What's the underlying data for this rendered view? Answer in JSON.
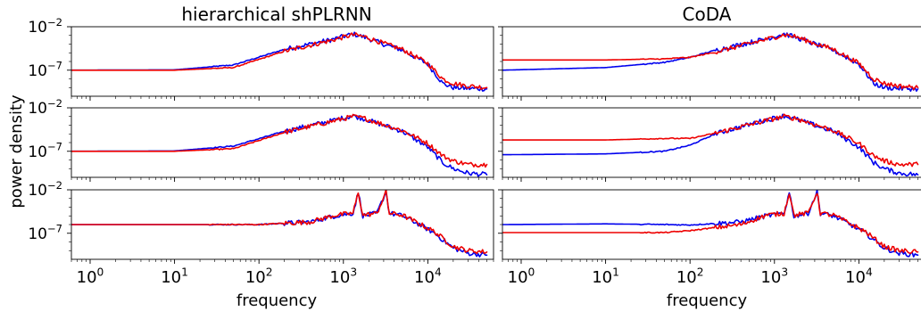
{
  "figure": {
    "ylabel": "power density",
    "columns": [
      {
        "title": "hierarchical shPLRNN"
      },
      {
        "title": "CoDA"
      }
    ],
    "xlabel": "frequency",
    "x_ticks": [
      {
        "base": "10",
        "exp": "0"
      },
      {
        "base": "10",
        "exp": "1"
      },
      {
        "base": "10",
        "exp": "2"
      },
      {
        "base": "10",
        "exp": "3"
      },
      {
        "base": "10",
        "exp": "4"
      }
    ],
    "y_ticks": [
      {
        "base": "10",
        "exp": "−2"
      },
      {
        "base": "10",
        "exp": "−7"
      }
    ]
  },
  "chart_data": {
    "type": "line",
    "layout": "3 rows x 2 columns of subplots, shared log x axis, log y axis",
    "x_scale": "log",
    "y_scale": "log",
    "xlim": [
      0.6,
      60000
    ],
    "ylim": [
      1e-10,
      0.01
    ],
    "grid": false,
    "series_colors": {
      "blue": "#0000ee",
      "red": "#ee0000"
    },
    "panels": [
      {
        "column": "hierarchical shPLRNN",
        "row": 1,
        "series": [
          {
            "color": "blue",
            "x": [
              0.6,
              10,
              50,
              200,
              700,
              1300,
              1800,
              3000,
              5000,
              10000,
              15000,
              20000,
              30000,
              50000
            ],
            "y": [
              1e-07,
              1.1e-07,
              4e-07,
              2.5e-05,
              0.0003,
              0.0015,
              0.0006,
              0.0001,
              2e-05,
              5e-07,
              3e-09,
              1e-09,
              8e-10,
              7e-10
            ]
          },
          {
            "color": "red",
            "x": [
              0.6,
              10,
              50,
              200,
              700,
              1300,
              1800,
              3000,
              5000,
              10000,
              15000,
              20000,
              30000,
              50000
            ],
            "y": [
              1e-07,
              1e-07,
              2e-07,
              1.5e-05,
              0.00025,
              0.0012,
              0.0007,
              0.00012,
              2.5e-05,
              6e-07,
              1e-08,
              3e-09,
              1.5e-09,
              1e-09
            ]
          }
        ]
      },
      {
        "column": "hierarchical shPLRNN",
        "row": 2,
        "series": [
          {
            "color": "blue",
            "x": [
              0.6,
              10,
              50,
              200,
              700,
              1300,
              1800,
              3000,
              5000,
              10000,
              15000,
              20000,
              30000,
              50000
            ],
            "y": [
              1e-07,
              1.1e-07,
              4e-07,
              2e-05,
              0.0003,
              0.0012,
              0.0005,
              0.0001,
              2e-05,
              3e-07,
              5e-09,
              1e-09,
              3e-10,
              2e-10
            ]
          },
          {
            "color": "red",
            "x": [
              0.6,
              10,
              50,
              200,
              700,
              1300,
              1800,
              3000,
              5000,
              10000,
              15000,
              20000,
              30000,
              50000
            ],
            "y": [
              1e-07,
              1e-07,
              2e-07,
              1.5e-05,
              0.00025,
              0.001,
              0.0006,
              0.00012,
              2.5e-05,
              8e-07,
              3e-08,
              8e-09,
              3e-09,
              3e-09
            ]
          }
        ]
      },
      {
        "column": "hierarchical shPLRNN",
        "row": 3,
        "series": [
          {
            "color": "blue",
            "x": [
              0.6,
              10,
              50,
              100,
              400,
              800,
              1300,
              1500,
              1700,
              2500,
              3200,
              3500,
              5000,
              8000,
              12000,
              20000,
              30000,
              50000
            ],
            "y": [
              1e-06,
              1e-06,
              1e-06,
              1e-06,
              2e-06,
              1e-05,
              2e-05,
              0.005,
              1e-05,
              2e-05,
              0.006,
              2e-05,
              1e-05,
              1e-06,
              1e-07,
              2e-09,
              5e-10,
              3e-10
            ]
          },
          {
            "color": "red",
            "x": [
              0.6,
              10,
              50,
              100,
              400,
              800,
              1300,
              1500,
              1700,
              2500,
              3200,
              3500,
              5000,
              8000,
              12000,
              20000,
              30000,
              50000
            ],
            "y": [
              1e-06,
              1e-06,
              1e-06,
              1e-06,
              2e-06,
              1.2e-05,
              2e-05,
              0.005,
              1.2e-05,
              2e-05,
              0.006,
              2e-05,
              1.2e-05,
              1.2e-06,
              1.5e-07,
              3e-09,
              1e-09,
              7e-10
            ]
          }
        ]
      },
      {
        "column": "CoDA",
        "row": 1,
        "series": [
          {
            "color": "blue",
            "x": [
              0.6,
              10,
              50,
              100,
              200,
              700,
              1300,
              1800,
              3000,
              5000,
              10000,
              15000,
              20000,
              30000,
              50000
            ],
            "y": [
              1e-07,
              2e-07,
              8e-07,
              3e-06,
              2e-05,
              0.0003,
              0.0015,
              0.0006,
              0.0001,
              2e-05,
              5e-07,
              3e-09,
              1e-09,
              8e-10,
              7e-10
            ]
          },
          {
            "color": "red",
            "x": [
              0.6,
              10,
              50,
              100,
              200,
              700,
              1300,
              1800,
              3000,
              5000,
              10000,
              15000,
              20000,
              30000,
              50000
            ],
            "y": [
              1.5e-06,
              1.5e-06,
              2e-06,
              3e-06,
              1.2e-05,
              0.00025,
              0.0012,
              0.0007,
              0.00012,
              2.5e-05,
              6e-07,
              1e-08,
              3e-09,
              1.5e-09,
              1e-09
            ]
          }
        ]
      },
      {
        "column": "CoDA",
        "row": 2,
        "series": [
          {
            "color": "blue",
            "x": [
              0.6,
              10,
              50,
              100,
              200,
              700,
              1300,
              1800,
              3000,
              5000,
              10000,
              15000,
              20000,
              30000,
              50000
            ],
            "y": [
              4e-08,
              5e-08,
              1e-07,
              5e-07,
              1e-05,
              0.0003,
              0.0012,
              0.0005,
              0.0001,
              2e-05,
              3e-07,
              5e-09,
              1e-09,
              3e-10,
              2e-10
            ]
          },
          {
            "color": "red",
            "x": [
              0.6,
              10,
              50,
              100,
              200,
              700,
              1300,
              1800,
              3000,
              5000,
              10000,
              15000,
              20000,
              30000,
              50000
            ],
            "y": [
              2e-06,
              2e-06,
              3e-06,
              3e-06,
              1.2e-05,
              0.00025,
              0.001,
              0.0006,
              0.00012,
              2.5e-05,
              8e-07,
              3e-08,
              8e-09,
              3e-09,
              3e-09
            ]
          }
        ]
      },
      {
        "column": "CoDA",
        "row": 3,
        "series": [
          {
            "color": "blue",
            "x": [
              0.6,
              10,
              50,
              100,
              400,
              800,
              1300,
              1500,
              1700,
              2500,
              3200,
              3500,
              5000,
              8000,
              12000,
              20000,
              30000,
              50000
            ],
            "y": [
              1e-06,
              1.2e-06,
              1e-06,
              9e-07,
              2e-06,
              1e-05,
              2e-05,
              0.005,
              1e-05,
              2e-05,
              0.006,
              2e-05,
              1e-05,
              1e-06,
              1e-07,
              2e-09,
              5e-10,
              3e-10
            ]
          },
          {
            "color": "red",
            "x": [
              0.6,
              10,
              50,
              100,
              400,
              800,
              1300,
              1500,
              1700,
              2500,
              3200,
              3500,
              5000,
              8000,
              12000,
              20000,
              30000,
              50000
            ],
            "y": [
              1.2e-07,
              1.2e-07,
              1.2e-07,
              2e-07,
              1e-06,
              1.2e-05,
              2e-05,
              0.005,
              1.2e-05,
              2e-05,
              0.006,
              2e-05,
              1.2e-05,
              1.2e-06,
              1.5e-07,
              3e-09,
              1e-09,
              7e-10
            ]
          }
        ]
      }
    ]
  }
}
